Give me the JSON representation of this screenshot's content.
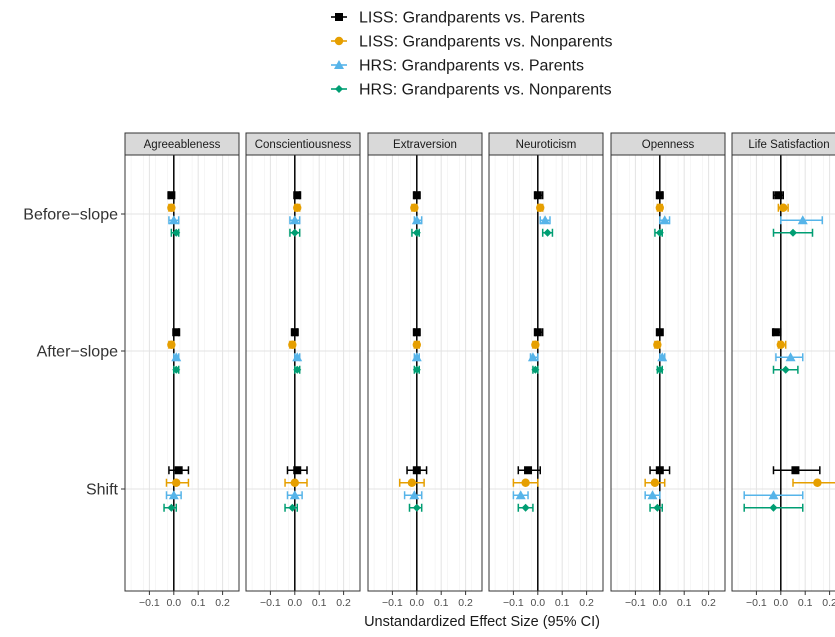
{
  "chart_data": {
    "type": "scatter",
    "subtype": "forest-plot-faceted",
    "xlabel": "Unstandardized Effect Size (95% CI)",
    "ylabel": "",
    "facets": [
      "Agreeableness",
      "Conscientiousness",
      "Extraversion",
      "Neuroticism",
      "Openness",
      "Life Satisfaction"
    ],
    "y_categories": [
      "Before−slope",
      "After−slope",
      "Shift"
    ],
    "x_ticks": [
      "−0.1",
      "0.0",
      "0.1",
      "0.2"
    ],
    "x_tick_values": [
      -0.1,
      0.0,
      0.1,
      0.2
    ],
    "xlim": [
      -0.2,
      0.25
    ],
    "reference_line": 0,
    "legend_position": "top",
    "grid": true,
    "series": [
      {
        "name": "LISS: Grandparents vs. Parents",
        "color": "#000000",
        "marker": "square",
        "points": [
          {
            "facet": "Agreeableness",
            "y": "Before−slope",
            "est": -0.01,
            "lo": -0.02,
            "hi": 0.0
          },
          {
            "facet": "Agreeableness",
            "y": "After−slope",
            "est": 0.01,
            "lo": 0.0,
            "hi": 0.02
          },
          {
            "facet": "Agreeableness",
            "y": "Shift",
            "est": 0.02,
            "lo": -0.02,
            "hi": 0.06
          },
          {
            "facet": "Conscientiousness",
            "y": "Before−slope",
            "est": 0.01,
            "lo": 0.0,
            "hi": 0.02
          },
          {
            "facet": "Conscientiousness",
            "y": "After−slope",
            "est": 0.0,
            "lo": -0.01,
            "hi": 0.01
          },
          {
            "facet": "Conscientiousness",
            "y": "Shift",
            "est": 0.01,
            "lo": -0.03,
            "hi": 0.05
          },
          {
            "facet": "Extraversion",
            "y": "Before−slope",
            "est": 0.0,
            "lo": -0.01,
            "hi": 0.01
          },
          {
            "facet": "Extraversion",
            "y": "After−slope",
            "est": 0.0,
            "lo": -0.01,
            "hi": 0.01
          },
          {
            "facet": "Extraversion",
            "y": "Shift",
            "est": 0.0,
            "lo": -0.04,
            "hi": 0.04
          },
          {
            "facet": "Neuroticism",
            "y": "Before−slope",
            "est": 0.0,
            "lo": -0.01,
            "hi": 0.02
          },
          {
            "facet": "Neuroticism",
            "y": "After−slope",
            "est": 0.0,
            "lo": -0.01,
            "hi": 0.02
          },
          {
            "facet": "Neuroticism",
            "y": "Shift",
            "est": -0.04,
            "lo": -0.08,
            "hi": 0.01
          },
          {
            "facet": "Openness",
            "y": "Before−slope",
            "est": 0.0,
            "lo": -0.01,
            "hi": 0.01
          },
          {
            "facet": "Openness",
            "y": "After−slope",
            "est": 0.0,
            "lo": -0.01,
            "hi": 0.0
          },
          {
            "facet": "Openness",
            "y": "Shift",
            "est": 0.0,
            "lo": -0.04,
            "hi": 0.04
          },
          {
            "facet": "Life Satisfaction",
            "y": "Before−slope",
            "est": -0.01,
            "lo": -0.03,
            "hi": 0.01
          },
          {
            "facet": "Life Satisfaction",
            "y": "After−slope",
            "est": -0.02,
            "lo": -0.03,
            "hi": 0.0
          },
          {
            "facet": "Life Satisfaction",
            "y": "Shift",
            "est": 0.06,
            "lo": -0.03,
            "hi": 0.16
          }
        ]
      },
      {
        "name": "LISS: Grandparents vs. Nonparents",
        "color": "#E69F00",
        "marker": "circle",
        "points": [
          {
            "facet": "Agreeableness",
            "y": "Before−slope",
            "est": -0.01,
            "lo": -0.02,
            "hi": 0.0
          },
          {
            "facet": "Agreeableness",
            "y": "After−slope",
            "est": -0.01,
            "lo": -0.02,
            "hi": 0.0
          },
          {
            "facet": "Agreeableness",
            "y": "Shift",
            "est": 0.01,
            "lo": -0.03,
            "hi": 0.06
          },
          {
            "facet": "Conscientiousness",
            "y": "Before−slope",
            "est": 0.01,
            "lo": 0.0,
            "hi": 0.02
          },
          {
            "facet": "Conscientiousness",
            "y": "After−slope",
            "est": -0.01,
            "lo": -0.02,
            "hi": 0.0
          },
          {
            "facet": "Conscientiousness",
            "y": "Shift",
            "est": 0.0,
            "lo": -0.04,
            "hi": 0.05
          },
          {
            "facet": "Extraversion",
            "y": "Before−slope",
            "est": -0.01,
            "lo": -0.02,
            "hi": 0.0
          },
          {
            "facet": "Extraversion",
            "y": "After−slope",
            "est": 0.0,
            "lo": -0.01,
            "hi": 0.01
          },
          {
            "facet": "Extraversion",
            "y": "Shift",
            "est": -0.02,
            "lo": -0.07,
            "hi": 0.03
          },
          {
            "facet": "Neuroticism",
            "y": "Before−slope",
            "est": 0.01,
            "lo": 0.0,
            "hi": 0.02
          },
          {
            "facet": "Neuroticism",
            "y": "After−slope",
            "est": -0.01,
            "lo": -0.02,
            "hi": 0.0
          },
          {
            "facet": "Neuroticism",
            "y": "Shift",
            "est": -0.05,
            "lo": -0.1,
            "hi": 0.0
          },
          {
            "facet": "Openness",
            "y": "Before−slope",
            "est": 0.0,
            "lo": -0.01,
            "hi": 0.01
          },
          {
            "facet": "Openness",
            "y": "After−slope",
            "est": -0.01,
            "lo": -0.02,
            "hi": 0.0
          },
          {
            "facet": "Openness",
            "y": "Shift",
            "est": -0.02,
            "lo": -0.06,
            "hi": 0.02
          },
          {
            "facet": "Life Satisfaction",
            "y": "Before−slope",
            "est": 0.01,
            "lo": -0.01,
            "hi": 0.03
          },
          {
            "facet": "Life Satisfaction",
            "y": "After−slope",
            "est": 0.0,
            "lo": -0.01,
            "hi": 0.02
          },
          {
            "facet": "Life Satisfaction",
            "y": "Shift",
            "est": 0.15,
            "lo": 0.05,
            "hi": 0.25
          }
        ]
      },
      {
        "name": "HRS: Grandparents vs. Parents",
        "color": "#56B4E9",
        "marker": "triangle",
        "points": [
          {
            "facet": "Agreeableness",
            "y": "Before−slope",
            "est": 0.0,
            "lo": -0.02,
            "hi": 0.02
          },
          {
            "facet": "Agreeableness",
            "y": "After−slope",
            "est": 0.01,
            "lo": 0.0,
            "hi": 0.02
          },
          {
            "facet": "Agreeableness",
            "y": "Shift",
            "est": 0.0,
            "lo": -0.03,
            "hi": 0.03
          },
          {
            "facet": "Conscientiousness",
            "y": "Before−slope",
            "est": 0.0,
            "lo": -0.02,
            "hi": 0.02
          },
          {
            "facet": "Conscientiousness",
            "y": "After−slope",
            "est": 0.01,
            "lo": 0.0,
            "hi": 0.02
          },
          {
            "facet": "Conscientiousness",
            "y": "Shift",
            "est": 0.0,
            "lo": -0.03,
            "hi": 0.03
          },
          {
            "facet": "Extraversion",
            "y": "Before−slope",
            "est": 0.0,
            "lo": -0.01,
            "hi": 0.02
          },
          {
            "facet": "Extraversion",
            "y": "After−slope",
            "est": 0.0,
            "lo": -0.01,
            "hi": 0.01
          },
          {
            "facet": "Extraversion",
            "y": "Shift",
            "est": -0.01,
            "lo": -0.05,
            "hi": 0.02
          },
          {
            "facet": "Neuroticism",
            "y": "Before−slope",
            "est": 0.03,
            "lo": 0.01,
            "hi": 0.05
          },
          {
            "facet": "Neuroticism",
            "y": "After−slope",
            "est": -0.02,
            "lo": -0.03,
            "hi": 0.0
          },
          {
            "facet": "Neuroticism",
            "y": "Shift",
            "est": -0.07,
            "lo": -0.1,
            "hi": -0.04
          },
          {
            "facet": "Openness",
            "y": "Before−slope",
            "est": 0.02,
            "lo": 0.0,
            "hi": 0.04
          },
          {
            "facet": "Openness",
            "y": "After−slope",
            "est": 0.01,
            "lo": 0.0,
            "hi": 0.02
          },
          {
            "facet": "Openness",
            "y": "Shift",
            "est": -0.03,
            "lo": -0.06,
            "hi": 0.0
          },
          {
            "facet": "Life Satisfaction",
            "y": "Before−slope",
            "est": 0.09,
            "lo": 0.0,
            "hi": 0.17
          },
          {
            "facet": "Life Satisfaction",
            "y": "After−slope",
            "est": 0.04,
            "lo": -0.02,
            "hi": 0.09
          },
          {
            "facet": "Life Satisfaction",
            "y": "Shift",
            "est": -0.03,
            "lo": -0.15,
            "hi": 0.09
          }
        ]
      },
      {
        "name": "HRS: Grandparents vs. Nonparents",
        "color": "#009E73",
        "marker": "diamond",
        "points": [
          {
            "facet": "Agreeableness",
            "y": "Before−slope",
            "est": 0.01,
            "lo": -0.01,
            "hi": 0.02
          },
          {
            "facet": "Agreeableness",
            "y": "After−slope",
            "est": 0.01,
            "lo": 0.0,
            "hi": 0.02
          },
          {
            "facet": "Agreeableness",
            "y": "Shift",
            "est": -0.01,
            "lo": -0.04,
            "hi": 0.01
          },
          {
            "facet": "Conscientiousness",
            "y": "Before−slope",
            "est": 0.0,
            "lo": -0.02,
            "hi": 0.02
          },
          {
            "facet": "Conscientiousness",
            "y": "After−slope",
            "est": 0.01,
            "lo": 0.0,
            "hi": 0.02
          },
          {
            "facet": "Conscientiousness",
            "y": "Shift",
            "est": -0.01,
            "lo": -0.04,
            "hi": 0.01
          },
          {
            "facet": "Extraversion",
            "y": "Before−slope",
            "est": 0.0,
            "lo": -0.02,
            "hi": 0.01
          },
          {
            "facet": "Extraversion",
            "y": "After−slope",
            "est": 0.0,
            "lo": -0.01,
            "hi": 0.01
          },
          {
            "facet": "Extraversion",
            "y": "Shift",
            "est": 0.0,
            "lo": -0.03,
            "hi": 0.02
          },
          {
            "facet": "Neuroticism",
            "y": "Before−slope",
            "est": 0.04,
            "lo": 0.02,
            "hi": 0.06
          },
          {
            "facet": "Neuroticism",
            "y": "After−slope",
            "est": -0.01,
            "lo": -0.02,
            "hi": 0.0
          },
          {
            "facet": "Neuroticism",
            "y": "Shift",
            "est": -0.05,
            "lo": -0.08,
            "hi": -0.02
          },
          {
            "facet": "Openness",
            "y": "Before−slope",
            "est": 0.0,
            "lo": -0.02,
            "hi": 0.01
          },
          {
            "facet": "Openness",
            "y": "After−slope",
            "est": 0.0,
            "lo": -0.01,
            "hi": 0.01
          },
          {
            "facet": "Openness",
            "y": "Shift",
            "est": -0.01,
            "lo": -0.04,
            "hi": 0.01
          },
          {
            "facet": "Life Satisfaction",
            "y": "Before−slope",
            "est": 0.05,
            "lo": -0.03,
            "hi": 0.13
          },
          {
            "facet": "Life Satisfaction",
            "y": "After−slope",
            "est": 0.02,
            "lo": -0.03,
            "hi": 0.07
          },
          {
            "facet": "Life Satisfaction",
            "y": "Shift",
            "est": -0.03,
            "lo": -0.15,
            "hi": 0.09
          }
        ]
      }
    ]
  }
}
